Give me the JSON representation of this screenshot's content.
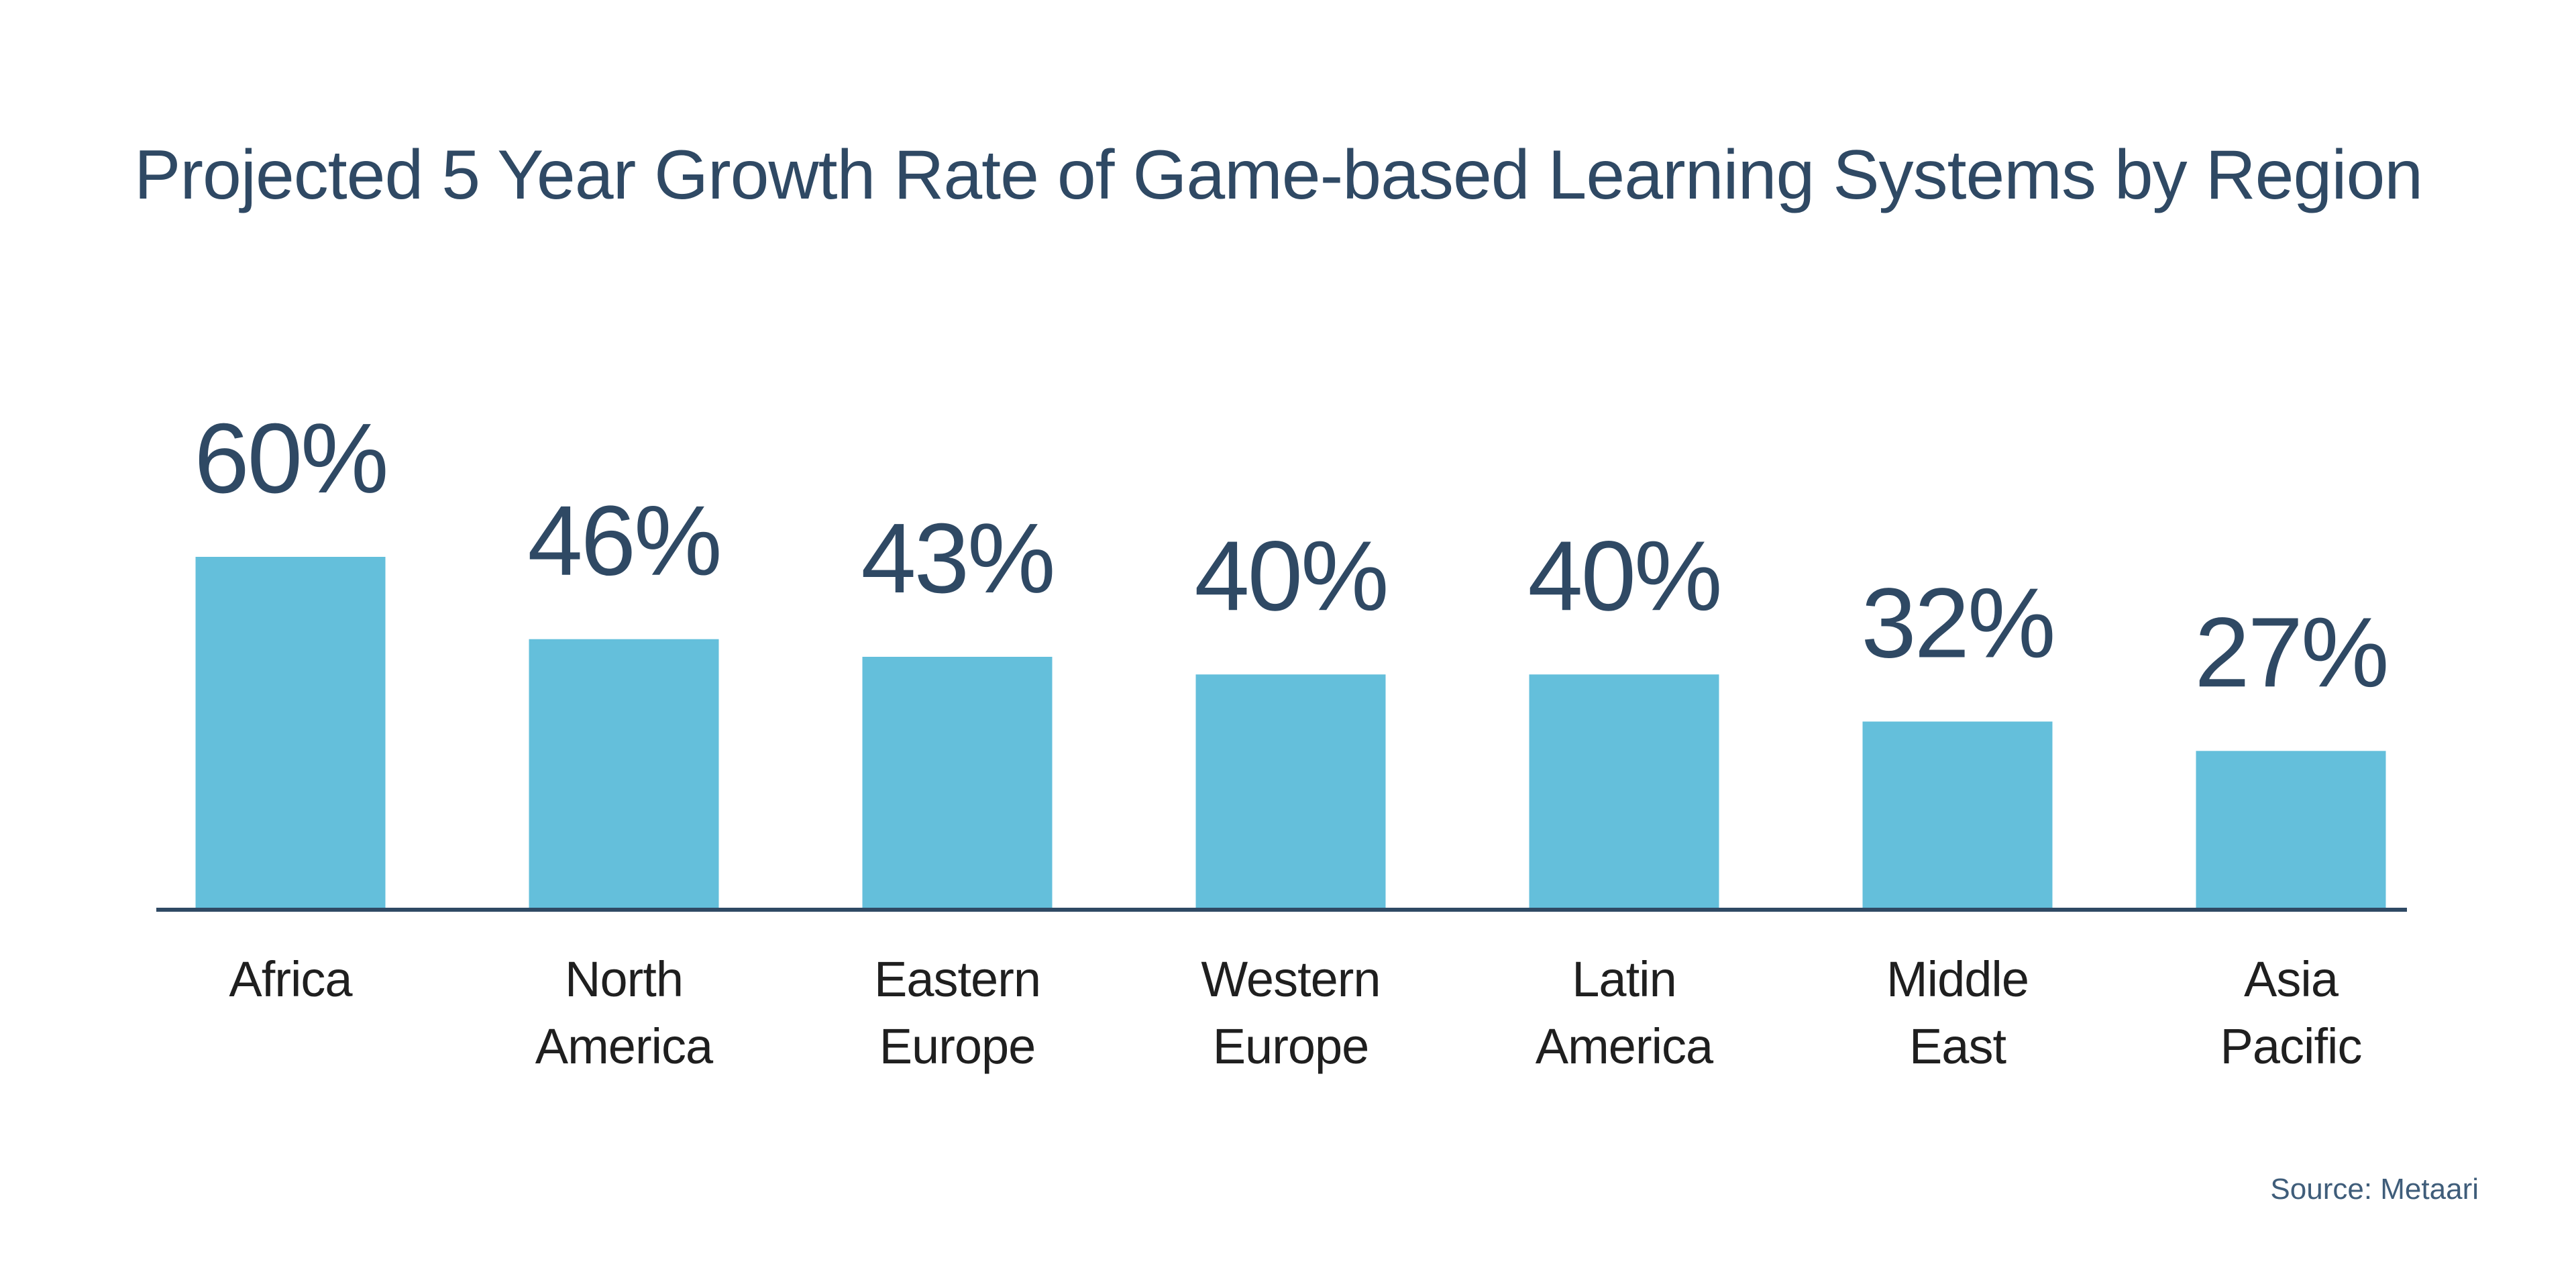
{
  "chart_data": {
    "type": "bar",
    "title": "Projected 5 Year Growth Rate of Game-based Learning Systems by Region",
    "categories": [
      [
        "Africa"
      ],
      [
        "North",
        "America"
      ],
      [
        "Eastern",
        "Europe"
      ],
      [
        "Western",
        "Europe"
      ],
      [
        "Latin",
        "America"
      ],
      [
        "Middle",
        "East"
      ],
      [
        "Asia",
        "Pacific"
      ]
    ],
    "values": [
      60,
      46,
      43,
      40,
      40,
      32,
      27
    ],
    "value_labels": [
      "60%",
      "46%",
      "43%",
      "40%",
      "40%",
      "32%",
      "27%"
    ],
    "xlabel": "",
    "ylabel": "",
    "ylim": [
      0,
      60
    ],
    "grid": false,
    "legend": "none",
    "source": "Source: Metaari"
  },
  "colors": {
    "bar": "#64bfdb",
    "baseline": "#2f4964",
    "title": "#2f4964",
    "value_label": "#2f4964",
    "category_label": "#1f1f1f",
    "source": "#3f5d7a",
    "background": "#ffffff"
  }
}
